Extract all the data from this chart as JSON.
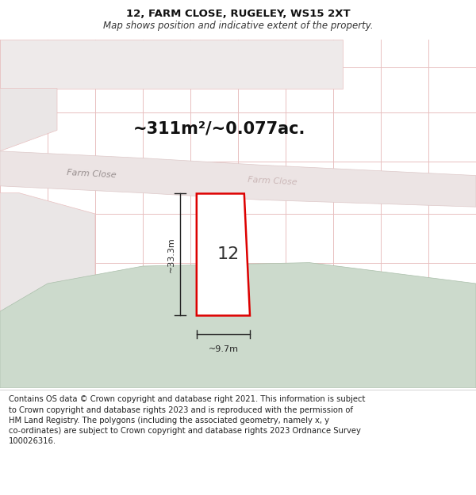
{
  "title_line1": "12, FARM CLOSE, RUGELEY, WS15 2XT",
  "title_line2": "Map shows position and indicative extent of the property.",
  "area_text": "~311m²/~0.077ac.",
  "label_12": "12",
  "dim_width": "~9.7m",
  "dim_height": "~33.3m",
  "road_label1": "Farm Close",
  "road_label2": "Farm Close",
  "footer_text": "Contains OS data © Crown copyright and database right 2021. This information is subject\nto Crown copyright and database rights 2023 and is reproduced with the permission of\nHM Land Registry. The polygons (including the associated geometry, namely x, y\nco-ordinates) are subject to Crown copyright and database rights 2023 Ordnance Survey\n100026316.",
  "bg_color": "#f7f7f7",
  "map_bg": "#f2f0f0",
  "road_color": "#ece4e4",
  "plot_border_color": "#dd0000",
  "plot_fill": "#ffffff",
  "grid_line_color": "#e8c0c0",
  "green_area_color": "#ccdacc",
  "footer_bg": "#ffffff",
  "title_fontsize": 9.5,
  "subtitle_fontsize": 8.5,
  "area_fontsize": 15,
  "label_fontsize": 16,
  "dim_fontsize": 8,
  "road_fontsize": 8,
  "footer_fontsize": 7.2
}
